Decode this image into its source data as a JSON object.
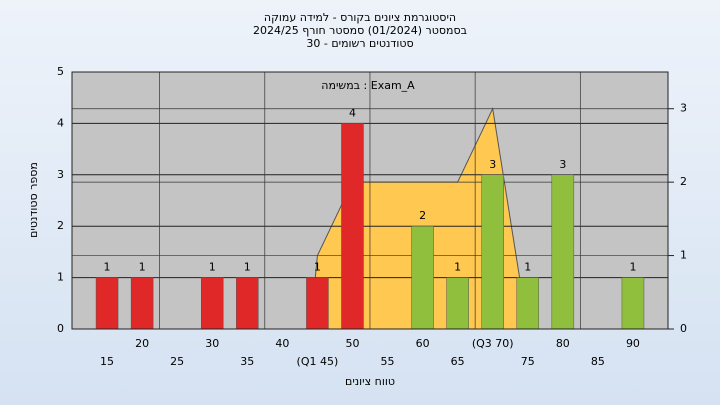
{
  "chart_data": {
    "type": "bar",
    "title": [
      "היסטוגרמת ציונים בקורס - למידה עמוקה",
      "בסמסטר  (01/2024)  סמסטר חורף 2024/25",
      "30 - סטודנטים רשומים"
    ],
    "annotation": "במשימה : Exam_A",
    "xlabel": "טווח ציונים",
    "ylabel": "מספר סטודנטים",
    "x": [
      15,
      20,
      30,
      35,
      45,
      50,
      60,
      65,
      70,
      75,
      80,
      90
    ],
    "values": [
      1,
      1,
      1,
      1,
      1,
      4,
      2,
      1,
      3,
      1,
      3,
      1
    ],
    "colors": [
      "#e02828",
      "#e02828",
      "#e02828",
      "#e02828",
      "#e02828",
      "#e02828",
      "#8fbf3c",
      "#8fbf3c",
      "#8fbf3c",
      "#8fbf3c",
      "#8fbf3c",
      "#8fbf3c"
    ],
    "xlim": [
      10,
      95
    ],
    "xticks": [
      15,
      20,
      25,
      30,
      35,
      40,
      {
        "value": 45,
        "label": "(Q1 45)"
      },
      50,
      55,
      60,
      65,
      {
        "value": 70,
        "label": "(Q3 70)"
      },
      75,
      80,
      85,
      90
    ],
    "ylim": [
      0,
      5
    ],
    "yticks": [
      0,
      1,
      2,
      3,
      4,
      5
    ],
    "y2lim": [
      0,
      3.5
    ],
    "y2ticks": [
      0,
      1,
      2,
      3
    ],
    "area": {
      "x": [
        44,
        45,
        50,
        65,
        70,
        75
      ],
      "values": [
        0,
        1,
        2,
        2,
        3,
        0
      ],
      "color": "#ffc850",
      "axis": "y2"
    },
    "grid": true
  }
}
